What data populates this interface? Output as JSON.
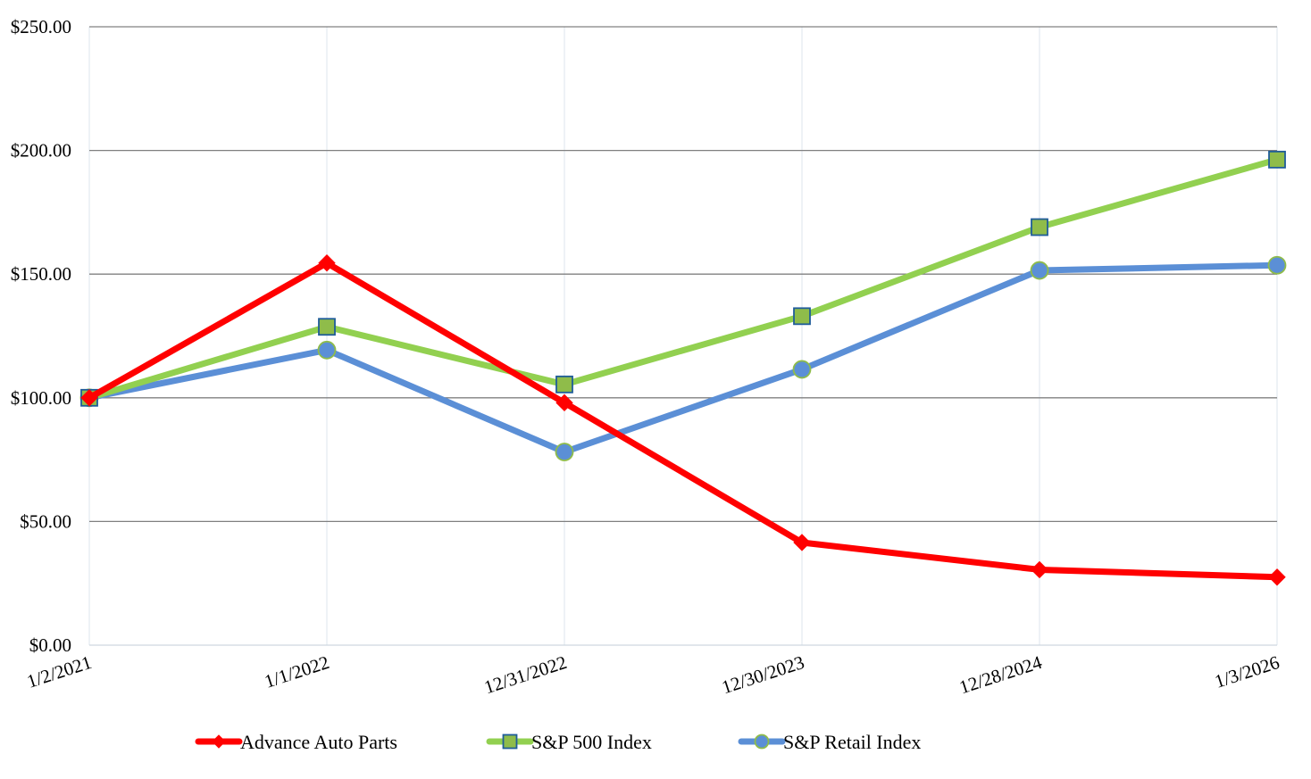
{
  "chart_data": {
    "type": "line",
    "title": "",
    "xlabel": "",
    "ylabel": "",
    "categories": [
      "1/2/2021",
      "1/1/2022",
      "12/31/2022",
      "12/30/2023",
      "12/28/2024",
      "1/3/2026"
    ],
    "ylim": [
      0,
      250
    ],
    "yticks": [
      0,
      50,
      100,
      150,
      200,
      250
    ],
    "ytick_labels": [
      "$0.00",
      "$50.00",
      "$100.00",
      "$150.00",
      "$200.00",
      "$250.00"
    ],
    "grid": {
      "horizontal": true,
      "vertical": true
    },
    "legend_position": "bottom",
    "series": [
      {
        "name": "Advance Auto Parts",
        "color": "#ff0000",
        "marker": "diamond",
        "values": [
          100.0,
          154.5,
          98.0,
          41.5,
          30.5,
          27.5
        ]
      },
      {
        "name": "S&P 500 Index",
        "color": "#92d050",
        "marker_fill": "#8fbc4a",
        "marker_stroke": "#1f5c99",
        "marker": "square",
        "values": [
          100.0,
          128.7,
          105.4,
          133.0,
          169.0,
          196.3
        ]
      },
      {
        "name": "S&P Retail Index",
        "color": "#5b8fd6",
        "marker_fill": "#5b8fd6",
        "marker_stroke": "#8fbc4a",
        "marker": "circle",
        "values": [
          100.0,
          119.3,
          78.1,
          111.5,
          151.5,
          153.6
        ]
      }
    ]
  }
}
